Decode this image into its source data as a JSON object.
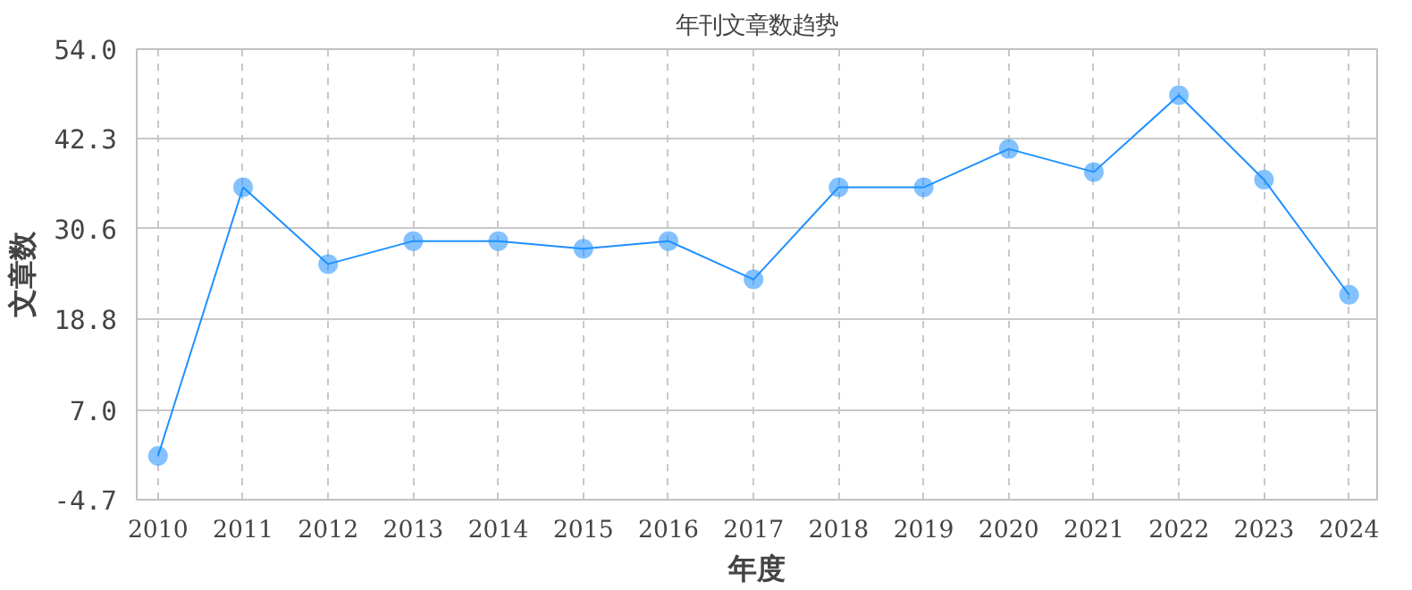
{
  "chart_data": {
    "type": "line",
    "title": "年刊文章数趋势",
    "xlabel": "年度",
    "ylabel": "文章数",
    "categories": [
      "2010",
      "2011",
      "2012",
      "2013",
      "2014",
      "2015",
      "2016",
      "2017",
      "2018",
      "2019",
      "2020",
      "2021",
      "2022",
      "2023",
      "2024"
    ],
    "series": [
      {
        "color": "#1e90ff",
        "values": [
          1,
          36,
          26,
          29,
          29,
          28,
          29,
          24,
          36,
          36,
          41,
          38,
          48,
          37,
          22
        ]
      }
    ],
    "ylim": [
      -4.7,
      54.0
    ],
    "yticks": [
      {
        "value": -4.7,
        "label": "-4.7"
      },
      {
        "value": 7.0,
        "label": "7.0"
      },
      {
        "value": 18.8,
        "label": "18.8"
      },
      {
        "value": 30.6,
        "label": "30.6"
      },
      {
        "value": 42.3,
        "label": "42.3"
      },
      {
        "value": 54.0,
        "label": "54.0"
      }
    ],
    "grid": true,
    "marker": "circle",
    "line_style": "solid"
  }
}
